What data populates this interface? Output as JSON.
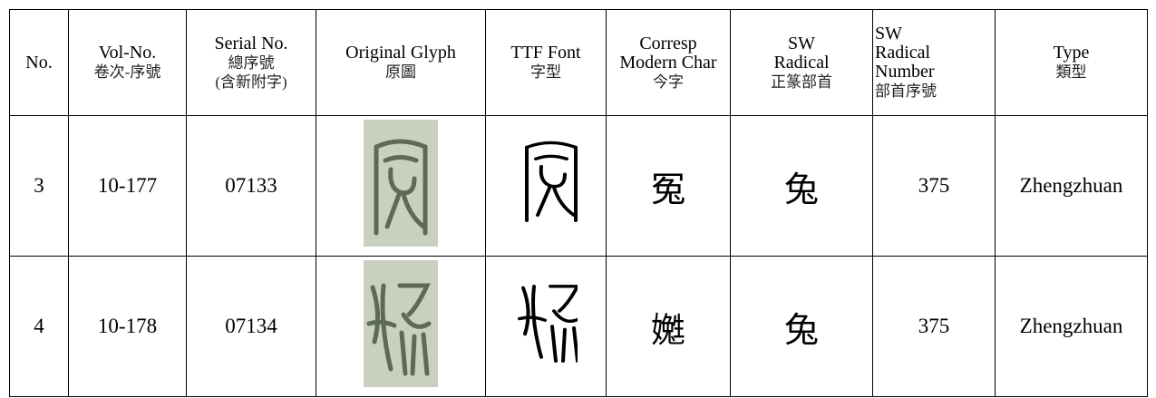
{
  "table": {
    "header": [
      [
        "No."
      ],
      [
        "Vol-No.",
        "卷次-序號"
      ],
      [
        "Serial No.",
        "總序號",
        "(含新附字)"
      ],
      [
        "Original Glyph",
        "原圖"
      ],
      [
        "TTF Font",
        "字型"
      ],
      [
        "Corresp",
        "Modern Char",
        "今字"
      ],
      [
        "SW",
        "Radical",
        "正篆部首"
      ],
      [
        "SW",
        "Radical",
        "Number",
        "部首序號"
      ],
      [
        "Type",
        "類型"
      ]
    ],
    "rows": [
      [
        "3",
        "10-177",
        "07133",
        "",
        "",
        "冤",
        "兔",
        "375",
        "Zhengzhuan"
      ],
      [
        "4",
        "10-178",
        "07134",
        "",
        "",
        "嬔",
        "兔",
        "375",
        "Zhengzhuan"
      ]
    ]
  }
}
